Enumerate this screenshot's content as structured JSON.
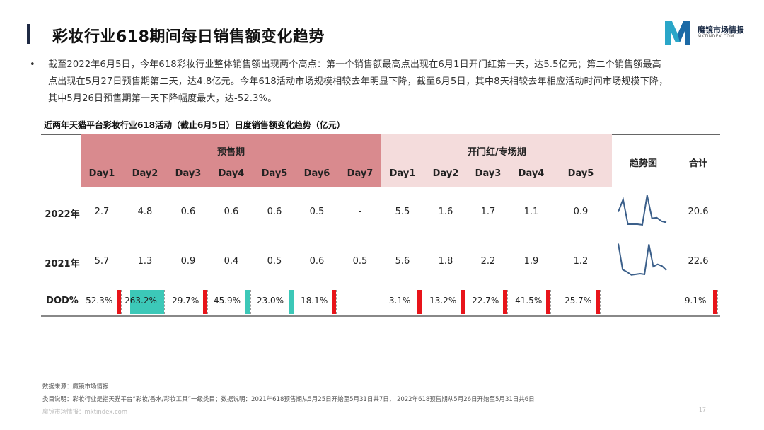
{
  "header": {
    "title": "彩妆行业618期间每日销售额变化趋势",
    "logo_name": "魔镜市场情报",
    "logo_sub": "MKTINDEX.COM"
  },
  "summary": {
    "bullet": "•",
    "lines": [
      "截至2022年6月5日，今年618彩妆行业整体销售额出现两个高点：第一个销售额最高点出现在6月1日开门红第一天，达5.5亿元；第二个销售额最高",
      "点出现在5月27日预售期第二天，达4.8亿元。今年618活动市场规模相较去年明显下降，截至6月5日，其中8天相较去年相应活动时间市场规模下降，",
      "其中5月26日预售期第一天下降幅度最大，达-52.3%。"
    ]
  },
  "table": {
    "caption": "近两年天猫平台彩妆行业618活动（截止6月5日）日度销售额变化趋势（亿元）",
    "group_presale": "预售期",
    "group_opening": "开门红/专场期",
    "col_trend": "趋势图",
    "col_total": "合计",
    "presale_days": [
      "Day1",
      "Day2",
      "Day3",
      "Day4",
      "Day5",
      "Day6",
      "Day7"
    ],
    "opening_days": [
      "Day1",
      "Day2",
      "Day3",
      "Day4",
      "Day5"
    ],
    "rows": [
      {
        "label": "2022年",
        "presale": [
          "2.7",
          "4.8",
          "0.6",
          "0.6",
          "0.6",
          "0.5",
          "-"
        ],
        "opening": [
          "5.5",
          "1.6",
          "1.7",
          "1.1",
          "0.9"
        ],
        "total": "20.6",
        "trend": [
          2.7,
          4.8,
          0.6,
          0.6,
          0.6,
          0.5,
          5.5,
          1.6,
          1.7,
          1.1,
          0.9
        ]
      },
      {
        "label": "2021年",
        "presale": [
          "5.7",
          "1.3",
          "0.9",
          "0.4",
          "0.5",
          "0.6",
          "0.5"
        ],
        "opening": [
          "5.6",
          "1.8",
          "2.2",
          "1.9",
          "1.2"
        ],
        "total": "22.6",
        "trend": [
          5.7,
          1.3,
          0.9,
          0.4,
          0.5,
          0.6,
          0.5,
          5.6,
          1.8,
          2.2,
          1.9,
          1.2
        ]
      }
    ],
    "dod": {
      "label": "DOD%",
      "presale": [
        "-52.3%",
        "263.2%",
        "-29.7%",
        "45.9%",
        "23.0%",
        "-18.1%",
        ""
      ],
      "opening": [
        "-3.1%",
        "-13.2%",
        "-22.7%",
        "-41.5%",
        "-25.7%"
      ],
      "total": "-9.1%",
      "presale_values": [
        -52.3,
        263.2,
        -29.7,
        45.9,
        23.0,
        -18.1
      ],
      "opening_values": [
        -3.1,
        -13.2,
        -22.7,
        -41.5,
        -25.7
      ],
      "total_value": -9.1
    }
  },
  "footer": {
    "source": "数据来源：魔镜市场情报",
    "note": "类目说明：彩妆行业是指天猫平台“彩妆/香水/彩妆工具”一级类目；数据说明：2021年618预售期从5月25日开始至5月31日共7日， 2022年618预售期从5月26日开始至5月31日共6日",
    "site": "魔镜市场情报：mktindex.com",
    "page": "17"
  },
  "colors": {
    "presale_band": "#d98a8e",
    "opening_band": "#f4dcdc",
    "negative": "#e8141a",
    "positive": "#3cc8b8",
    "sparkline": "#3b5f8a"
  }
}
